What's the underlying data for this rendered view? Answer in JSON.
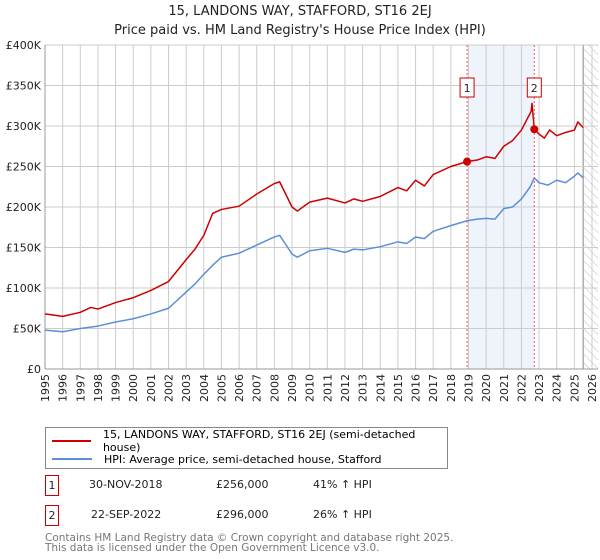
{
  "chart_data": {
    "type": "line",
    "title": "15, LANDONS WAY, STAFFORD, ST16 2EJ",
    "subtitle": "Price paid vs. HM Land Registry's House Price Index (HPI)",
    "xlim": [
      1995,
      2026
    ],
    "ylim": [
      0,
      400000
    ],
    "y_ticks": [
      {
        "v": 0,
        "label": "£0"
      },
      {
        "v": 50000,
        "label": "£50K"
      },
      {
        "v": 100000,
        "label": "£100K"
      },
      {
        "v": 150000,
        "label": "£150K"
      },
      {
        "v": 200000,
        "label": "£200K"
      },
      {
        "v": 250000,
        "label": "£250K"
      },
      {
        "v": 300000,
        "label": "£300K"
      },
      {
        "v": 350000,
        "label": "£350K"
      },
      {
        "v": 400000,
        "label": "£400K"
      }
    ],
    "x_ticks": [
      "1995",
      "1996",
      "1997",
      "1998",
      "1999",
      "2000",
      "2001",
      "2002",
      "2003",
      "2004",
      "2005",
      "2006",
      "2007",
      "2008",
      "2009",
      "2010",
      "2011",
      "2012",
      "2013",
      "2014",
      "2015",
      "2016",
      "2017",
      "2018",
      "2019",
      "2020",
      "2021",
      "2022",
      "2023",
      "2024",
      "2025",
      "2026"
    ],
    "grid": true,
    "shaded_range": [
      2018.92,
      2022.73
    ],
    "forecast_hatch_from": 2025.5,
    "series": [
      {
        "name": "15, LANDONS WAY, STAFFORD, ST16 2EJ (semi-detached house)",
        "color": "#cc0000",
        "x": [
          1995,
          1996,
          1997,
          1997.6,
          1998,
          1999,
          2000,
          2001,
          2002,
          2003,
          2003.5,
          2004,
          2004.5,
          2005,
          2006,
          2007,
          2008,
          2008.3,
          2009,
          2009.3,
          2010,
          2011,
          2012,
          2012.5,
          2013,
          2014,
          2015,
          2015.5,
          2016,
          2016.5,
          2017,
          2018,
          2018.92,
          2019.5,
          2020,
          2020.5,
          2021,
          2021.5,
          2022,
          2022.55,
          2022.6,
          2022.73,
          2023,
          2023.3,
          2023.6,
          2024,
          2024.5,
          2025,
          2025.2,
          2025.5
        ],
        "y": [
          68000,
          65000,
          70000,
          76000,
          74000,
          82000,
          88000,
          97000,
          108000,
          135000,
          148000,
          165000,
          192000,
          197000,
          201000,
          216000,
          229000,
          231000,
          200000,
          195000,
          206000,
          211000,
          205000,
          210000,
          207000,
          213000,
          224000,
          220000,
          233000,
          226000,
          240000,
          250000,
          256000,
          258000,
          262000,
          260000,
          275000,
          282000,
          295000,
          318000,
          328000,
          296000,
          290000,
          285000,
          295000,
          288000,
          292000,
          295000,
          305000,
          298000
        ]
      },
      {
        "name": "HPI: Average price, semi-detached house, Stafford",
        "color": "#5b8fd6",
        "x": [
          1995,
          1996,
          1997,
          1998,
          1999,
          2000,
          2001,
          2002,
          2003,
          2003.5,
          2004,
          2004.5,
          2005,
          2006,
          2007,
          2008,
          2008.3,
          2009,
          2009.3,
          2010,
          2011,
          2012,
          2012.5,
          2013,
          2014,
          2015,
          2015.5,
          2016,
          2016.5,
          2017,
          2018,
          2018.92,
          2019.5,
          2020,
          2020.5,
          2021,
          2021.5,
          2022,
          2022.5,
          2022.73,
          2023,
          2023.5,
          2024,
          2024.5,
          2025,
          2025.2,
          2025.5
        ],
        "y": [
          48000,
          46000,
          50000,
          53000,
          58000,
          62000,
          68000,
          75000,
          95000,
          105000,
          117000,
          128000,
          138000,
          143000,
          153000,
          163000,
          165000,
          142000,
          138000,
          146000,
          149000,
          144000,
          148000,
          147000,
          151000,
          157000,
          155000,
          163000,
          161000,
          170000,
          177000,
          183000,
          185000,
          186000,
          185000,
          198000,
          200000,
          210000,
          225000,
          236000,
          230000,
          227000,
          233000,
          230000,
          238000,
          242000,
          236000
        ]
      }
    ],
    "markers": [
      {
        "label": "1",
        "x": 2018.92,
        "y": 256000
      },
      {
        "label": "2",
        "x": 2022.73,
        "y": 296000
      }
    ]
  },
  "legend": {
    "items": [
      {
        "label": "15, LANDONS WAY, STAFFORD, ST16 2EJ (semi-detached house)",
        "color": "#cc0000"
      },
      {
        "label": "HPI: Average price, semi-detached house, Stafford",
        "color": "#5b8fd6"
      }
    ]
  },
  "transactions": [
    {
      "num": "1",
      "date": "30-NOV-2018",
      "price": "£256,000",
      "hpi": "41% ↑ HPI"
    },
    {
      "num": "2",
      "date": "22-SEP-2022",
      "price": "£296,000",
      "hpi": "26% ↑ HPI"
    }
  ],
  "footer": {
    "line1": "Contains HM Land Registry data © Crown copyright and database right 2025.",
    "line2": "This data is licensed under the Open Government Licence v3.0."
  }
}
